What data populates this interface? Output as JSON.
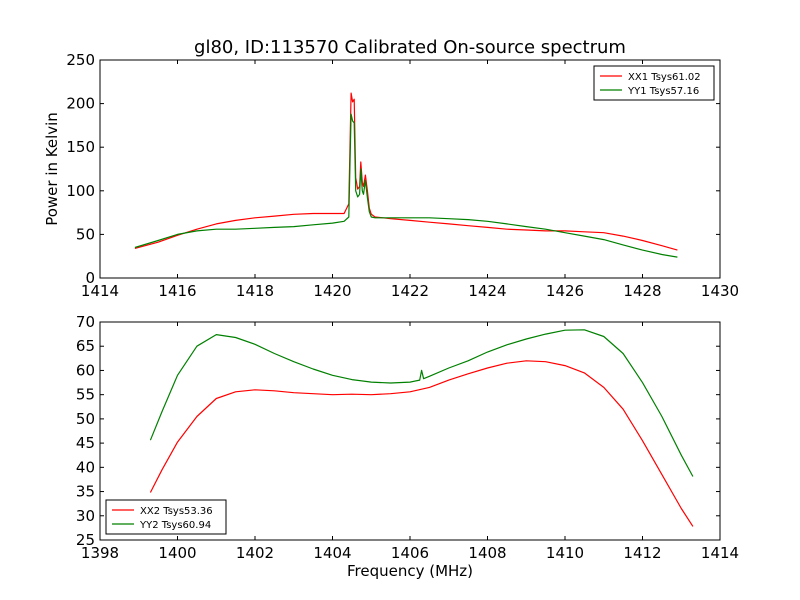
{
  "figure": {
    "title": "gl80, ID:113570 Calibrated On-source spectrum",
    "xlabel": "Frequency (MHz)"
  },
  "chart_data": [
    {
      "type": "line",
      "title": "gl80, ID:113570 Calibrated On-source spectrum",
      "ylabel": "Power in Kelvin",
      "xlim": [
        1414,
        1430
      ],
      "ylim": [
        0,
        250
      ],
      "xticks": [
        1414,
        1416,
        1418,
        1420,
        1422,
        1424,
        1426,
        1428,
        1430
      ],
      "yticks": [
        0,
        50,
        100,
        150,
        200,
        250
      ],
      "grid": false,
      "legend": "top-right",
      "series": [
        {
          "name": "XX1 Tsys61.02",
          "color": "#ff0000",
          "x": [
            1414.9,
            1415.5,
            1416.0,
            1416.5,
            1417.0,
            1417.5,
            1418.0,
            1418.5,
            1419.0,
            1419.5,
            1420.0,
            1420.3,
            1420.42,
            1420.48,
            1420.52,
            1420.56,
            1420.6,
            1420.65,
            1420.7,
            1420.73,
            1420.77,
            1420.8,
            1420.85,
            1420.9,
            1420.95,
            1421.0,
            1421.1,
            1421.3,
            1421.5,
            1422.0,
            1422.5,
            1423.0,
            1423.5,
            1424.0,
            1424.5,
            1425.0,
            1425.5,
            1426.0,
            1426.5,
            1427.0,
            1427.5,
            1428.0,
            1428.5,
            1428.9
          ],
          "values": [
            34,
            41,
            49,
            56,
            62,
            66,
            69,
            71,
            73,
            74,
            74,
            74,
            85,
            212,
            202,
            205,
            115,
            102,
            105,
            133,
            110,
            105,
            118,
            100,
            80,
            73,
            70,
            69,
            68,
            66,
            64,
            62,
            60,
            58,
            56,
            55,
            54,
            54,
            53,
            52,
            48,
            43,
            37,
            32
          ]
        },
        {
          "name": "YY1 Tsys57.16",
          "color": "#008000",
          "x": [
            1414.9,
            1415.5,
            1416.0,
            1416.5,
            1417.0,
            1417.5,
            1418.0,
            1418.5,
            1419.0,
            1419.5,
            1420.0,
            1420.3,
            1420.42,
            1420.48,
            1420.52,
            1420.56,
            1420.6,
            1420.65,
            1420.7,
            1420.73,
            1420.77,
            1420.8,
            1420.85,
            1420.9,
            1420.95,
            1421.0,
            1421.1,
            1421.3,
            1421.5,
            1422.0,
            1422.5,
            1423.0,
            1423.5,
            1424.0,
            1424.5,
            1425.0,
            1425.5,
            1426.0,
            1426.5,
            1427.0,
            1427.5,
            1428.0,
            1428.5,
            1428.9
          ],
          "values": [
            35,
            43,
            50,
            54,
            56,
            56,
            57,
            58,
            59,
            61,
            63,
            65,
            70,
            188,
            180,
            178,
            100,
            93,
            96,
            125,
            100,
            96,
            112,
            92,
            76,
            70,
            69,
            69,
            69,
            69,
            69,
            68,
            67,
            65,
            62,
            59,
            56,
            52,
            48,
            44,
            38,
            32,
            27,
            24
          ]
        }
      ]
    },
    {
      "type": "line",
      "ylabel": "",
      "xlabel": "Frequency (MHz)",
      "xlim": [
        1398,
        1414
      ],
      "ylim": [
        25,
        70
      ],
      "xticks": [
        1398,
        1400,
        1402,
        1404,
        1406,
        1408,
        1410,
        1412,
        1414
      ],
      "yticks": [
        25,
        30,
        35,
        40,
        45,
        50,
        55,
        60,
        65,
        70
      ],
      "grid": false,
      "legend": "bottom-left",
      "series": [
        {
          "name": "XX2 Tsys53.36",
          "color": "#ff0000",
          "x": [
            1399.3,
            1399.6,
            1400.0,
            1400.5,
            1401.0,
            1401.5,
            1402.0,
            1402.5,
            1403.0,
            1403.5,
            1404.0,
            1404.5,
            1405.0,
            1405.5,
            1406.0,
            1406.5,
            1407.0,
            1407.5,
            1408.0,
            1408.5,
            1409.0,
            1409.5,
            1410.0,
            1410.5,
            1411.0,
            1411.5,
            1412.0,
            1412.5,
            1413.0,
            1413.3
          ],
          "values": [
            34.8,
            39.5,
            45.2,
            50.5,
            54.2,
            55.6,
            56.0,
            55.8,
            55.4,
            55.2,
            55.0,
            55.1,
            55.0,
            55.2,
            55.6,
            56.5,
            58.0,
            59.3,
            60.5,
            61.5,
            62.0,
            61.8,
            61.0,
            59.5,
            56.5,
            52.0,
            45.5,
            38.5,
            31.5,
            27.8
          ]
        },
        {
          "name": "YY2 Tsys60.94",
          "color": "#008000",
          "x": [
            1399.3,
            1399.6,
            1400.0,
            1400.5,
            1401.0,
            1401.5,
            1402.0,
            1402.5,
            1403.0,
            1403.5,
            1404.0,
            1404.5,
            1405.0,
            1405.5,
            1406.0,
            1406.25,
            1406.3,
            1406.35,
            1406.5,
            1407.0,
            1407.5,
            1408.0,
            1408.5,
            1409.0,
            1409.5,
            1410.0,
            1410.5,
            1411.0,
            1411.5,
            1412.0,
            1412.5,
            1413.0,
            1413.3
          ],
          "values": [
            45.6,
            51.5,
            59.0,
            65.0,
            67.4,
            66.8,
            65.4,
            63.5,
            61.8,
            60.3,
            59.0,
            58.1,
            57.6,
            57.4,
            57.6,
            58.0,
            60.0,
            58.3,
            58.8,
            60.5,
            62.0,
            63.8,
            65.3,
            66.5,
            67.5,
            68.3,
            68.4,
            67.0,
            63.5,
            57.5,
            50.5,
            42.5,
            38.1
          ]
        }
      ]
    }
  ]
}
